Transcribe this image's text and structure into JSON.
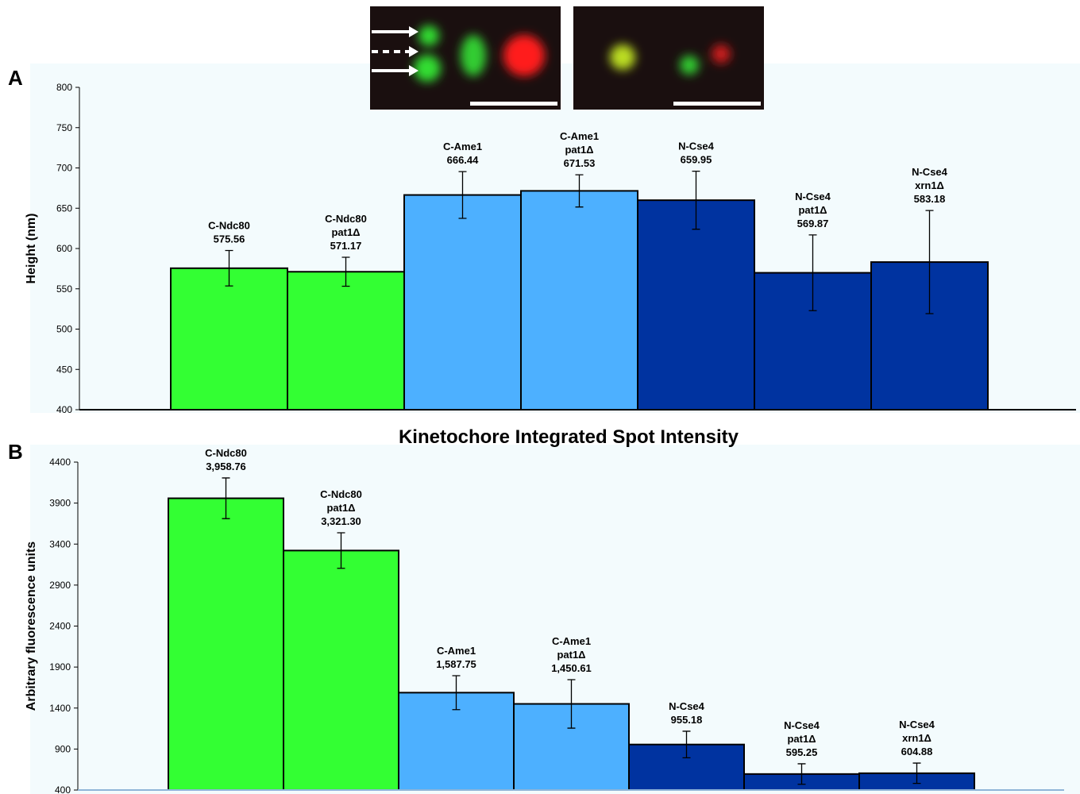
{
  "chart_data": [
    {
      "type": "bar",
      "panel": "A",
      "y_label": "Height (nm)",
      "categories": [
        [
          "C-Ndc80"
        ],
        [
          "C-Ndc80",
          "pat1Δ"
        ],
        [
          "C-Ame1"
        ],
        [
          "C-Ame1",
          "pat1Δ"
        ],
        [
          "N-Cse4"
        ],
        [
          "N-Cse4",
          "pat1Δ"
        ],
        [
          "N-Cse4",
          "xrn1Δ"
        ]
      ],
      "values": [
        575.56,
        571.17,
        666.44,
        671.53,
        659.95,
        569.87,
        583.18
      ],
      "errors": [
        22,
        18,
        29,
        20,
        36,
        47,
        64
      ],
      "colors": [
        "#33ff33",
        "#33ff33",
        "#4db0ff",
        "#4db0ff",
        "#0033a0",
        "#0033a0",
        "#0033a0"
      ],
      "ylim": [
        400,
        800
      ],
      "yticks": [
        400,
        450,
        500,
        550,
        600,
        650,
        700,
        750,
        800
      ]
    },
    {
      "type": "bar",
      "panel": "B",
      "title": "Kinetochore Integrated Spot Intensity",
      "y_label": "Arbitrary fluorescence units",
      "categories": [
        [
          "C-Ndc80"
        ],
        [
          "C-Ndc80",
          "pat1Δ"
        ],
        [
          "C-Ame1"
        ],
        [
          "C-Ame1",
          "pat1Δ"
        ],
        [
          "N-Cse4"
        ],
        [
          "N-Cse4",
          "pat1Δ"
        ],
        [
          "N-Cse4",
          "xrn1Δ"
        ]
      ],
      "values": [
        3958.76,
        3321.3,
        1587.75,
        1450.61,
        955.18,
        595.25,
        604.88
      ],
      "value_labels": [
        "3,958.76",
        "3,321.30",
        "1,587.75",
        "1,450.61",
        "955.18",
        "595.25",
        "604.88"
      ],
      "errors": [
        248,
        217,
        207,
        296,
        162,
        125,
        124
      ],
      "colors": [
        "#33ff33",
        "#33ff33",
        "#4db0ff",
        "#4db0ff",
        "#0033a0",
        "#0033a0",
        "#0033a0"
      ],
      "ylim": [
        400,
        4400
      ],
      "yticks": [
        400,
        900,
        1400,
        1900,
        2400,
        2900,
        3400,
        3900,
        4400
      ]
    }
  ]
}
